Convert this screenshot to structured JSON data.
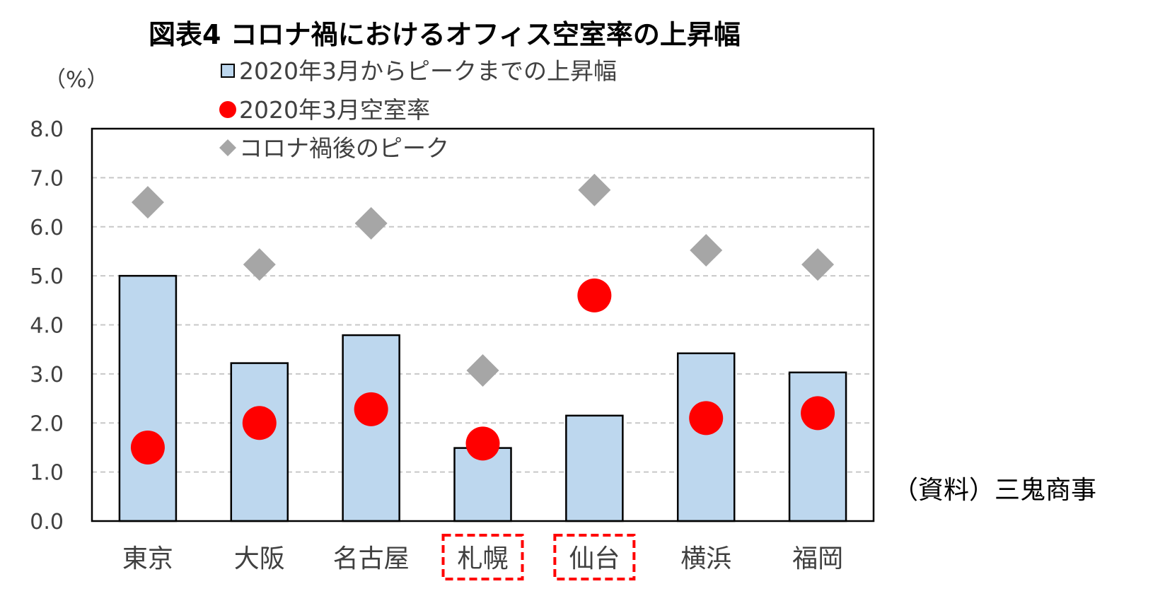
{
  "chart_data": {
    "type": "bar",
    "title": "図表4  コロナ禍におけるオフィス空室率の上昇幅",
    "ylabel": "（%）",
    "ylim": [
      0,
      8
    ],
    "yticks": [
      "0.0",
      "1.0",
      "2.0",
      "3.0",
      "4.0",
      "5.0",
      "6.0",
      "7.0",
      "8.0"
    ],
    "grid": true,
    "legend_position": "top-left",
    "categories": [
      "東京",
      "大阪",
      "名古屋",
      "札幌",
      "仙台",
      "横浜",
      "福岡"
    ],
    "highlighted_categories": [
      "札幌",
      "仙台"
    ],
    "series": [
      {
        "name": "2020年3月からピークまでの上昇幅",
        "type": "bar",
        "color": "#bdd7ee",
        "values": [
          5.0,
          3.22,
          3.79,
          1.49,
          2.15,
          3.42,
          3.03
        ]
      },
      {
        "name": "2020年3月空室率",
        "type": "scatter",
        "marker": "circle",
        "color": "#ff0000",
        "values": [
          1.5,
          2.0,
          2.28,
          1.58,
          4.6,
          2.1,
          2.2
        ]
      },
      {
        "name": "コロナ禍後のピーク",
        "type": "scatter",
        "marker": "diamond",
        "color": "#a6a6a6",
        "values": [
          6.5,
          5.23,
          6.07,
          3.07,
          6.75,
          5.52,
          5.23
        ]
      }
    ],
    "source_note": "（資料）三鬼商事"
  }
}
